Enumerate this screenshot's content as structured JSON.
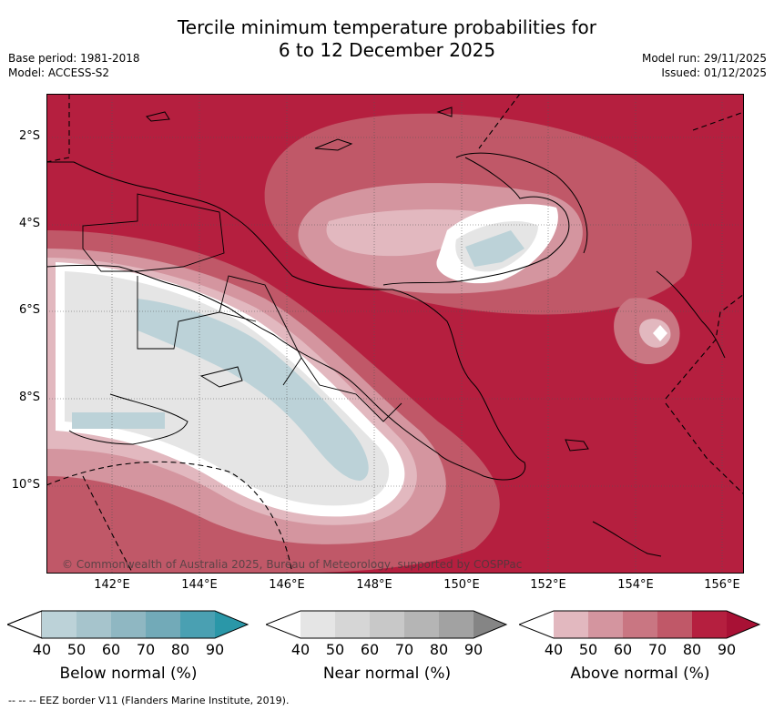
{
  "title_line1": "Tercile minimum temperature probabilities for",
  "title_line2": "6 to 12 December 2025",
  "base_period": "Base period: 1981-2018",
  "model": "Model: ACCESS-S2",
  "model_run": "Model run: 29/11/2025",
  "issued": "Issued: 01/12/2025",
  "lon_labels": [
    "142°E",
    "144°E",
    "146°E",
    "148°E",
    "150°E",
    "152°E",
    "154°E",
    "156°E"
  ],
  "lat_labels": [
    "2°S",
    "4°S",
    "6°S",
    "8°S",
    "10°S"
  ],
  "copyright": "© Commonwealth of Australia 2025, Bureau of Meteorology, supported by COSPPac",
  "footnote": "-- -- -- EEZ border V11 (Flanders Marine Institute, 2019).",
  "legend": {
    "ticks": [
      "40",
      "50",
      "60",
      "70",
      "80",
      "90"
    ],
    "below": {
      "label": "Below normal (%)",
      "colors": [
        "#bcd2d8",
        "#a6c4cc",
        "#8fb7c2",
        "#72aab8",
        "#4aa0b2",
        "#2a97a8"
      ]
    },
    "near": {
      "label": "Near normal (%)",
      "colors": [
        "#e5e5e5",
        "#d6d6d6",
        "#c8c8c8",
        "#b5b5b5",
        "#a2a2a2",
        "#858585"
      ]
    },
    "above": {
      "label": "Above normal (%)",
      "colors": [
        "#e2b8bf",
        "#d4959f",
        "#c97682",
        "#c05868",
        "#b51f3f",
        "#a81135"
      ]
    }
  },
  "colors": {
    "above_strong": "#b51f3f",
    "above_mid": "#c05868",
    "above_light": "#d4959f",
    "above_faint": "#e2b8bf",
    "near": "#e5e5e5",
    "below": "#bcd2d8"
  }
}
